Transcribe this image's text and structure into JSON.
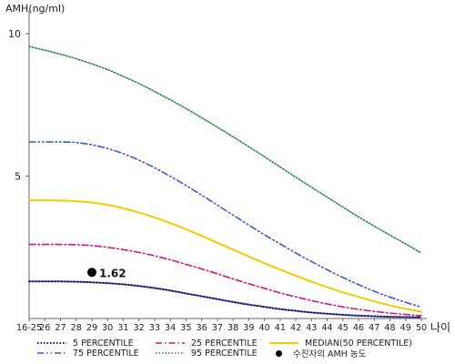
{
  "chart_data": {
    "type": "line",
    "ylabel": "AMH(ng/ml)",
    "xlabel": "나이",
    "ylim": [
      0,
      10.8
    ],
    "yticks": [
      5,
      10
    ],
    "categories": [
      "16-25",
      "26",
      "27",
      "28",
      "29",
      "30",
      "31",
      "32",
      "33",
      "34",
      "35",
      "36",
      "37",
      "38",
      "39",
      "40",
      "41",
      "42",
      "43",
      "44",
      "45",
      "46",
      "47",
      "48",
      "49",
      "50"
    ],
    "series": [
      {
        "name": "5 PERCENTILE",
        "color": "#1a1a7a",
        "dash": "1.5,2",
        "width": 2,
        "values": [
          1.3,
          1.3,
          1.3,
          1.29,
          1.27,
          1.24,
          1.2,
          1.14,
          1.07,
          0.98,
          0.88,
          0.78,
          0.68,
          0.58,
          0.49,
          0.41,
          0.33,
          0.27,
          0.21,
          0.17,
          0.13,
          0.1,
          0.08,
          0.06,
          0.05,
          0.04
        ]
      },
      {
        "name": "25 PERCENTILE",
        "color": "#d4147a",
        "dash": "7,3,1.5,3",
        "width": 1.6,
        "values": [
          2.6,
          2.6,
          2.6,
          2.59,
          2.56,
          2.5,
          2.42,
          2.32,
          2.2,
          2.06,
          1.9,
          1.74,
          1.57,
          1.39,
          1.22,
          1.06,
          0.9,
          0.76,
          0.63,
          0.51,
          0.41,
          0.32,
          0.25,
          0.19,
          0.14,
          0.1
        ]
      },
      {
        "name": "MEDIAN(50 PERCENTILE)",
        "color": "#f2cc00",
        "dash": "",
        "width": 2,
        "values": [
          4.15,
          4.15,
          4.14,
          4.12,
          4.07,
          3.99,
          3.87,
          3.72,
          3.55,
          3.35,
          3.13,
          2.9,
          2.66,
          2.42,
          2.18,
          1.94,
          1.72,
          1.5,
          1.29,
          1.1,
          0.92,
          0.76,
          0.6,
          0.46,
          0.34,
          0.24
        ]
      },
      {
        "name": "75 PERCENTILE",
        "color": "#3a5cc4",
        "dash": "7,3,1.5,3,1.5,3",
        "width": 1.6,
        "values": [
          6.2,
          6.2,
          6.2,
          6.18,
          6.1,
          5.97,
          5.79,
          5.56,
          5.29,
          4.99,
          4.67,
          4.33,
          3.98,
          3.63,
          3.28,
          2.94,
          2.62,
          2.3,
          2.0,
          1.71,
          1.44,
          1.19,
          0.96,
          0.75,
          0.57,
          0.4
        ]
      },
      {
        "name": "95 PERCENTILE",
        "color": "#2a8a4a",
        "dash": "1.5,2",
        "width": 1.6,
        "values": [
          9.55,
          9.42,
          9.28,
          9.12,
          8.94,
          8.74,
          8.5,
          8.25,
          7.97,
          7.68,
          7.37,
          7.05,
          6.72,
          6.38,
          6.03,
          5.68,
          5.32,
          4.96,
          4.61,
          4.26,
          3.91,
          3.57,
          3.24,
          2.93,
          2.62,
          2.3
        ]
      }
    ],
    "marker": {
      "category": "29",
      "value": 1.62,
      "label": "1.62",
      "color": "#000000"
    },
    "legend_extra": "수진자의 AMH 농도"
  }
}
